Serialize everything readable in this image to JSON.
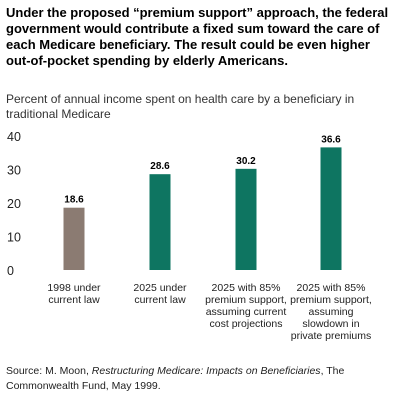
{
  "headline": "Under the proposed “premium support” approach, the federal government would contribute a fixed sum toward the care of each Medicare beneficiary. The result could be even higher out-of-pocket spending by elderly Americans.",
  "source": {
    "prefix": "Source: M. Moon, ",
    "title": "Restructuring Medicare: Impacts on Beneficiaries",
    "suffix": ", The Commonwealth Fund, May 1999."
  },
  "chart_data": {
    "type": "bar",
    "title": "Percent of annual income spent on health care by a beneficiary in traditional Medicare",
    "categories": [
      [
        "1998 under",
        "current law"
      ],
      [
        "2025 under",
        "current law"
      ],
      [
        "2025 with 85%",
        "premium support,",
        "assuming current",
        "cost projections"
      ],
      [
        "2025 with 85%",
        "premium support,",
        "assuming",
        "slowdown in",
        "private premiums"
      ]
    ],
    "values": [
      18.6,
      28.6,
      30.2,
      36.6
    ],
    "value_labels": [
      "18.6",
      "28.6",
      "30.2",
      "36.6"
    ],
    "colors": [
      "#8b7b72",
      "#0e7561",
      "#0e7561",
      "#0e7561"
    ],
    "yticks": [
      0,
      10,
      20,
      30,
      40
    ],
    "ylim": [
      0,
      40
    ],
    "grid": false,
    "legend": "none"
  }
}
